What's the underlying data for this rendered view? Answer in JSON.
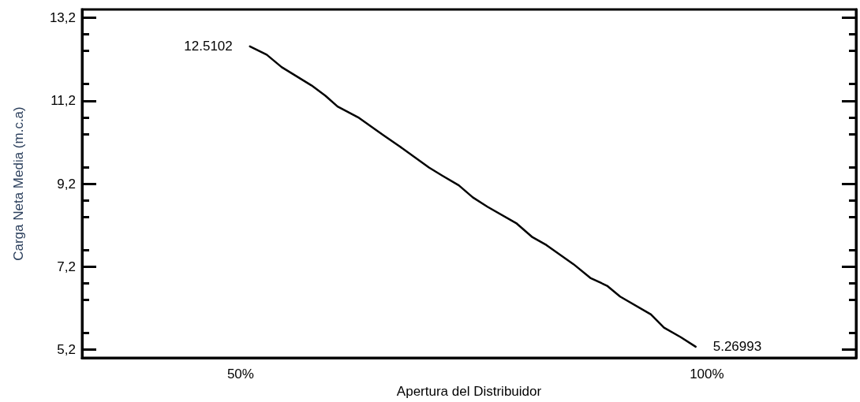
{
  "chart_data": {
    "type": "line",
    "xlabel": "Apertura del Distribuidor",
    "ylabel": "Carga Neta Media (m.c.a)",
    "x": [
      51,
      52.8,
      54.4,
      57.6,
      59.1,
      60.4,
      62.6,
      65.25,
      67,
      70.2,
      71.65,
      73.4,
      74.9,
      76.5,
      79.55,
      81.3,
      82.8,
      85.7,
      87.5,
      89.3,
      90.7,
      94,
      95.4,
      97.2,
      98.8
    ],
    "series": [
      {
        "color": "#000000",
        "values": [
          12.5102,
          12.31,
          12.01,
          11.57,
          11.32,
          11.06,
          10.8,
          10.38,
          10.11,
          9.59,
          9.39,
          9.16,
          8.87,
          8.64,
          8.25,
          7.91,
          7.72,
          7.26,
          6.93,
          6.74,
          6.48,
          6.05,
          5.73,
          5.5,
          5.26993
        ]
      }
    ],
    "xlim": [
      33,
      116
    ],
    "xticks": [
      {
        "value": 50,
        "label": "50%"
      },
      {
        "value": 100,
        "label": "100%"
      }
    ],
    "ylim": [
      5.0,
      13.4
    ],
    "yticks": [
      {
        "value": 5.2,
        "label": "5,2"
      },
      {
        "value": 7.2,
        "label": "7,2"
      },
      {
        "value": 9.2,
        "label": "9,2"
      },
      {
        "value": 11.2,
        "label": "11,2"
      },
      {
        "value": 13.2,
        "label": "13,2"
      }
    ],
    "annotations": [
      {
        "text": "12.5102",
        "x": 51,
        "y": 12.5102
      },
      {
        "text": "5.26993",
        "x": 98.8,
        "y": 5.26993
      }
    ],
    "grid": false,
    "marker": "none",
    "line_style": "solid"
  }
}
